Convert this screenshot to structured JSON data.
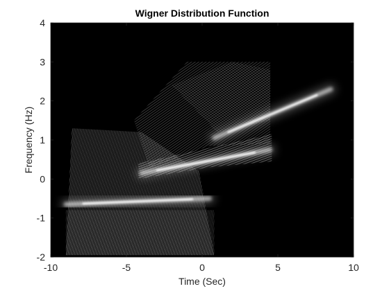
{
  "chart_data": {
    "type": "heatmap",
    "title": "Wigner Distribution Function",
    "xlabel": "Time (Sec)",
    "ylabel": "Frequency (Hz)",
    "xlim": [
      -10,
      10
    ],
    "ylim": [
      -2,
      4
    ],
    "xticks": [
      "-10",
      "-5",
      "0",
      "5",
      "10"
    ],
    "yticks": [
      "-2",
      "-1",
      "0",
      "1",
      "2",
      "3",
      "4"
    ],
    "colormap": "gray",
    "background": "#000000",
    "components": [
      {
        "name": "",
        "t": [
          -9,
          0.5
        ],
        "f": [
          -0.65,
          -0.5
        ]
      },
      {
        "name": "",
        "t": [
          -4,
          4.5
        ],
        "f": [
          0.15,
          0.75
        ]
      },
      {
        "name": "",
        "t": [
          0.8,
          8.5
        ],
        "f": [
          1.05,
          2.3
        ]
      }
    ]
  }
}
